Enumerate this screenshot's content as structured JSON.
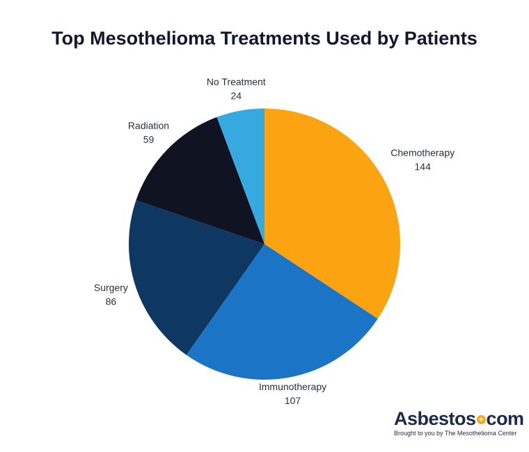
{
  "title": "Top Mesothelioma Treatments Used by Patients",
  "chart_data": {
    "type": "pie",
    "title": "Top Mesothelioma Treatments Used by Patients",
    "slices": [
      {
        "label": "Chemotherapy",
        "value": 144,
        "color": "#fca311"
      },
      {
        "label": "Immunotherapy",
        "value": 107,
        "color": "#1c74c6"
      },
      {
        "label": "Surgery",
        "value": 86,
        "color": "#0e3862"
      },
      {
        "label": "Radiation",
        "value": 59,
        "color": "#0f1322"
      },
      {
        "label": "No Treatment",
        "value": 24,
        "color": "#36a9e1"
      }
    ],
    "start": "top",
    "direction": "clockwise"
  },
  "brand": {
    "name_prefix": "Asbestos",
    "plus_symbol": "+",
    "name_suffix": "com",
    "tagline": "Brought to you by The Mesothelioma Center",
    "accent_color": "#f5a623"
  }
}
